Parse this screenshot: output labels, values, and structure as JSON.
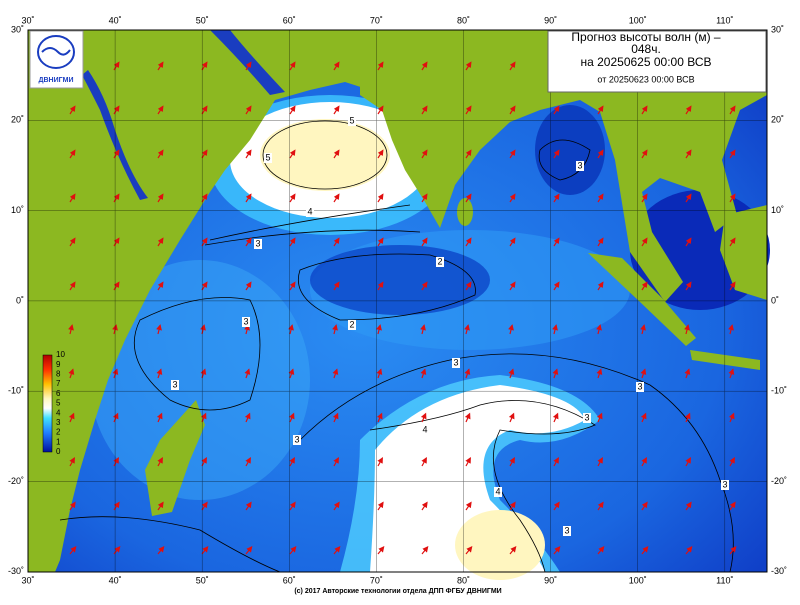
{
  "header": {
    "title_lines": [
      "Прогноз высоты волн (м) –",
      "048ч.",
      "на 20250625 00:00 ВСВ",
      "от 20250623 00:00 ВСВ"
    ]
  },
  "logo": {
    "text": "ДВНИГМИ"
  },
  "axes": {
    "lon_labels": [
      "30˚",
      "40˚",
      "50˚",
      "60˚",
      "70˚",
      "80˚",
      "90˚",
      "100˚",
      "110˚"
    ],
    "lat_labels": [
      "30˚",
      "20˚",
      "10˚",
      "0˚",
      "-10˚",
      "-20˚",
      "-30˚"
    ]
  },
  "colorbar": {
    "labels": [
      "10",
      "9",
      "8",
      "7",
      "6",
      "5",
      "4",
      "3",
      "2",
      "1",
      "0"
    ]
  },
  "contour_labels": [
    "5",
    "5",
    "4",
    "3",
    "2",
    "2",
    "3",
    "3",
    "3",
    "3",
    "4",
    "4",
    "3",
    "3",
    "3",
    "3",
    "3"
  ],
  "footer": "(c) 2017 Авторские технологии отдела ДПП ФГБУ ДВНИГМИ"
}
